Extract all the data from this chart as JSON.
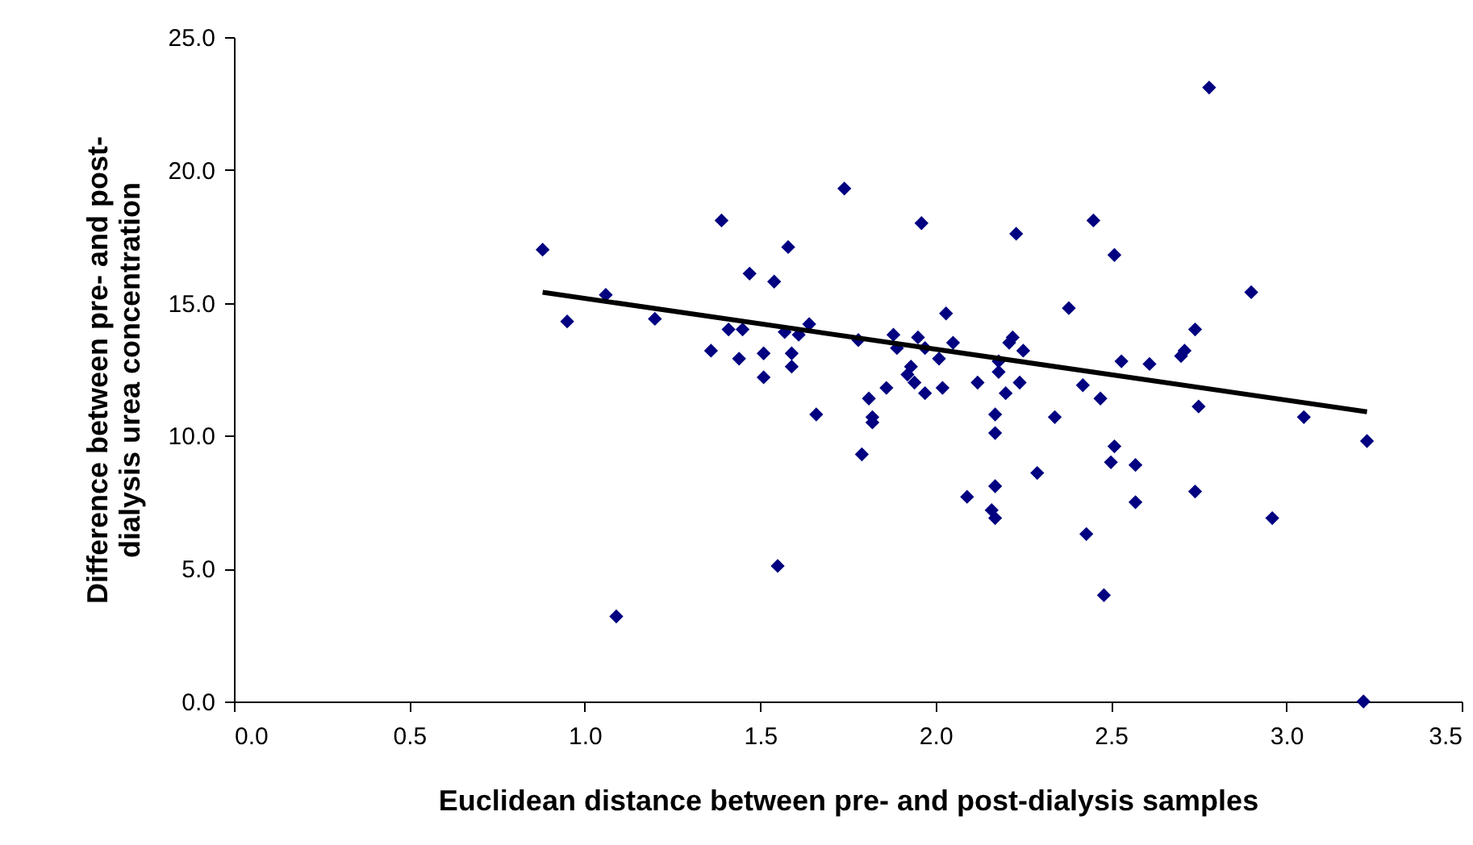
{
  "chart_data": {
    "type": "scatter",
    "xlabel": "Euclidean distance between pre- and post-dialysis samples",
    "ylabel": "Difference between pre- and post-\ndialysis urea concentration",
    "xlim": [
      0,
      3.5
    ],
    "xticks": [
      {
        "value": 0,
        "label": "0.0"
      },
      {
        "value": 0.5,
        "label": "0.5"
      },
      {
        "value": 1,
        "label": "1.0"
      },
      {
        "value": 1.5,
        "label": "1.5"
      },
      {
        "value": 2,
        "label": "2.0"
      },
      {
        "value": 2.5,
        "label": "2.5"
      },
      {
        "value": 3,
        "label": "3.0"
      },
      {
        "value": 3.5,
        "label": "3.5"
      }
    ],
    "ylim": [
      0,
      25
    ],
    "yticks": [
      {
        "value": 0,
        "label": "0.0"
      },
      {
        "value": 5,
        "label": "5.0"
      },
      {
        "value": 10,
        "label": "10.0"
      },
      {
        "value": 15,
        "label": "15.0"
      },
      {
        "value": 20,
        "label": "20.0"
      },
      {
        "value": 25,
        "label": "25.0"
      }
    ],
    "grid": false,
    "marker": "diamond",
    "series": [
      {
        "color": "#000080",
        "x": [
          0.88,
          0.95,
          1.06,
          1.09,
          1.2,
          1.36,
          1.39,
          1.41,
          1.44,
          1.45,
          1.47,
          1.51,
          1.51,
          1.54,
          1.55,
          1.57,
          1.58,
          1.59,
          1.59,
          1.61,
          1.64,
          1.66,
          1.74,
          1.78,
          1.79,
          1.81,
          1.82,
          1.82,
          1.86,
          1.88,
          1.89,
          1.92,
          1.93,
          1.94,
          1.95,
          1.96,
          1.97,
          1.97,
          2.01,
          2.02,
          2.03,
          2.05,
          2.09,
          2.12,
          2.16,
          2.17,
          2.17,
          2.17,
          2.17,
          2.18,
          2.18,
          2.2,
          2.21,
          2.22,
          2.23,
          2.24,
          2.25,
          2.29,
          2.34,
          2.38,
          2.42,
          2.43,
          2.45,
          2.47,
          2.48,
          2.5,
          2.51,
          2.51,
          2.53,
          2.57,
          2.57,
          2.61,
          2.7,
          2.71,
          2.74,
          2.74,
          2.75,
          2.78,
          2.9,
          2.96,
          3.05,
          3.22,
          3.23
        ],
        "values": [
          17.0,
          14.3,
          15.3,
          3.2,
          14.4,
          13.2,
          18.1,
          14.0,
          12.9,
          14.0,
          16.1,
          13.1,
          12.2,
          15.8,
          5.1,
          13.9,
          17.1,
          12.6,
          13.1,
          13.8,
          14.2,
          10.8,
          19.3,
          13.6,
          9.3,
          11.4,
          10.5,
          10.7,
          11.8,
          13.8,
          13.3,
          12.3,
          12.6,
          12.0,
          13.7,
          18.0,
          11.6,
          13.3,
          12.9,
          11.8,
          14.6,
          13.5,
          7.7,
          12.0,
          7.2,
          6.9,
          10.1,
          8.1,
          10.8,
          12.8,
          12.4,
          11.6,
          13.5,
          13.7,
          17.6,
          12.0,
          13.2,
          8.6,
          10.7,
          14.8,
          11.9,
          6.3,
          18.1,
          11.4,
          4.0,
          9.0,
          9.6,
          16.8,
          12.8,
          8.9,
          7.5,
          12.7,
          13.0,
          13.2,
          7.9,
          14.0,
          11.1,
          23.1,
          15.4,
          6.9,
          10.7,
          0.0,
          9.8
        ]
      },
      {
        "type": "line",
        "marker": "none",
        "color": "#000000",
        "line_style": "solid",
        "x": [
          0.88,
          3.23
        ],
        "values": [
          15.4,
          10.9
        ]
      }
    ]
  }
}
